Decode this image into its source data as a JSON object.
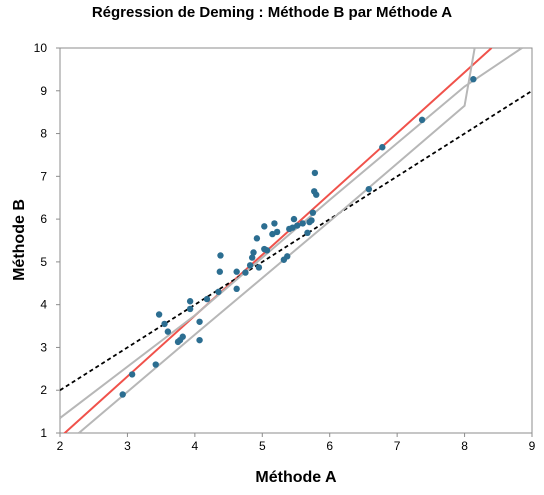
{
  "chart_data": {
    "type": "scatter",
    "title": "Régression de Deming : Méthode B par Méthode A",
    "xlabel": "Méthode A",
    "ylabel": "Méthode B",
    "xlim": [
      2,
      9
    ],
    "ylim": [
      1,
      10
    ],
    "xticks": [
      2,
      3,
      4,
      5,
      6,
      7,
      8,
      9
    ],
    "yticks": [
      1,
      2,
      3,
      4,
      5,
      6,
      7,
      8,
      9,
      10
    ],
    "grid": false,
    "legend": "none",
    "points": [
      [
        2.93,
        1.9
      ],
      [
        3.07,
        2.37
      ],
      [
        3.42,
        2.6
      ],
      [
        3.47,
        3.77
      ],
      [
        3.55,
        3.55
      ],
      [
        3.6,
        3.37
      ],
      [
        3.75,
        3.13
      ],
      [
        3.78,
        3.17
      ],
      [
        3.82,
        3.25
      ],
      [
        3.93,
        3.9
      ],
      [
        3.93,
        4.08
      ],
      [
        4.07,
        3.17
      ],
      [
        4.07,
        3.6
      ],
      [
        4.18,
        4.13
      ],
      [
        4.35,
        4.3
      ],
      [
        4.37,
        4.77
      ],
      [
        4.38,
        5.15
      ],
      [
        4.62,
        4.37
      ],
      [
        4.62,
        4.77
      ],
      [
        4.75,
        4.75
      ],
      [
        4.82,
        4.92
      ],
      [
        4.85,
        5.1
      ],
      [
        4.87,
        5.22
      ],
      [
        4.92,
        5.55
      ],
      [
        4.95,
        4.87
      ],
      [
        5.03,
        5.83
      ],
      [
        5.03,
        5.3
      ],
      [
        5.07,
        5.27
      ],
      [
        5.15,
        5.65
      ],
      [
        5.18,
        5.9
      ],
      [
        5.22,
        5.7
      ],
      [
        5.32,
        5.05
      ],
      [
        5.37,
        5.13
      ],
      [
        5.4,
        5.77
      ],
      [
        5.45,
        5.8
      ],
      [
        5.47,
        6.0
      ],
      [
        5.52,
        5.85
      ],
      [
        5.6,
        5.9
      ],
      [
        5.67,
        5.68
      ],
      [
        5.7,
        5.93
      ],
      [
        5.73,
        5.97
      ],
      [
        5.75,
        6.15
      ],
      [
        5.77,
        6.65
      ],
      [
        5.78,
        7.08
      ],
      [
        5.8,
        6.57
      ],
      [
        6.58,
        6.7
      ],
      [
        6.78,
        7.68
      ],
      [
        7.37,
        8.32
      ],
      [
        8.13,
        9.27
      ]
    ],
    "series": [
      {
        "name": "",
        "type": "line",
        "color": "#f0524b",
        "style": "solid",
        "x": [
          2.0,
          8.4
        ],
        "y": [
          0.9,
          10.0
        ]
      },
      {
        "name": "",
        "type": "line",
        "color": "#000000",
        "style": "dashed",
        "x": [
          2.0,
          9.0
        ],
        "y": [
          2.0,
          9.0
        ]
      },
      {
        "name": "",
        "type": "line",
        "color": "#b7b7b7",
        "style": "solid",
        "x": [
          2.0,
          4.0,
          6.0,
          8.0,
          8.85
        ],
        "y": [
          1.35,
          3.75,
          6.45,
          9.1,
          10.0
        ]
      },
      {
        "name": "",
        "type": "line",
        "color": "#b7b7b7",
        "style": "solid",
        "x": [
          2.28,
          4.0,
          6.0,
          8.0,
          8.15
        ],
        "y": [
          1.0,
          3.3,
          5.95,
          8.65,
          10.0
        ]
      }
    ],
    "point_color": "#2c6e91"
  }
}
